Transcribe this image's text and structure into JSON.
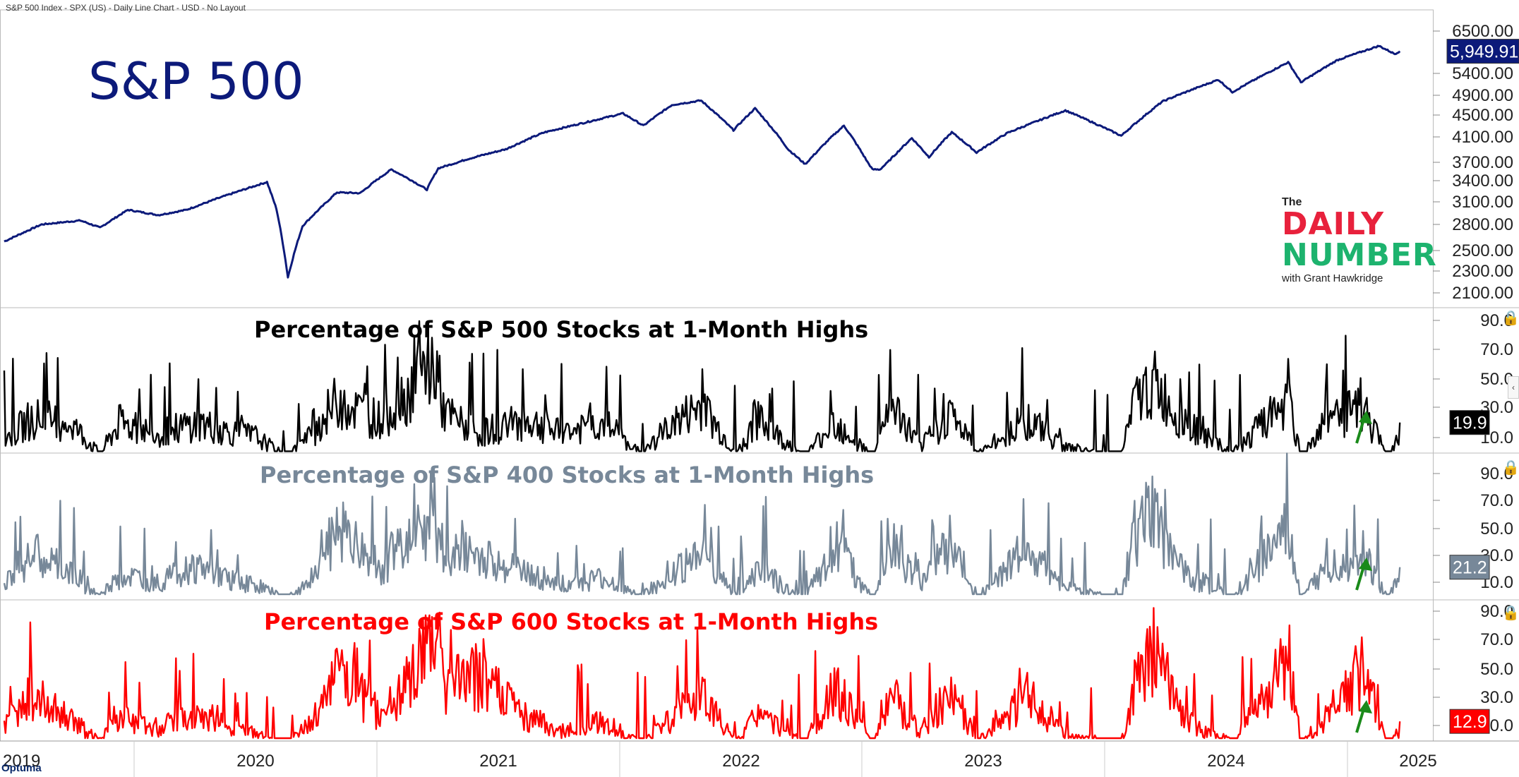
{
  "header": {
    "text": "S&P 500 Index - SPX (US) - Daily Line Chart - USD - No Layout"
  },
  "logo": {
    "the": "The",
    "line1": "DAILY",
    "line2": "NUMBER",
    "line3": "with Grant Hawkridge"
  },
  "footer": {
    "brand": "Optuma"
  },
  "chart_data": [
    {
      "type": "line",
      "title": "S&P 500",
      "x_axis_labels": [
        "2019",
        "2020",
        "2021",
        "2022",
        "2023",
        "2024",
        "2025"
      ],
      "y_ticks": [
        "2100.00",
        "2300.00",
        "2500.00",
        "2800.00",
        "3100.00",
        "3400.00",
        "3700.00",
        "4100.00",
        "4500.00",
        "4900.00",
        "5400.00",
        "6500.00"
      ],
      "y_scale": "log",
      "last_value_label": "5,949.91",
      "color": "#0c1a7a",
      "series": [
        {
          "points": [
            [
              "2019-01-01",
              2600
            ],
            [
              "2019-03-01",
              2800
            ],
            [
              "2019-05-01",
              2850
            ],
            [
              "2019-06-01",
              2760
            ],
            [
              "2019-07-15",
              2990
            ],
            [
              "2019-09-01",
              2920
            ],
            [
              "2019-10-15",
              2990
            ],
            [
              "2019-12-01",
              3140
            ],
            [
              "2020-02-19",
              3380
            ],
            [
              "2020-03-05",
              3000
            ],
            [
              "2020-03-23",
              2240
            ],
            [
              "2020-04-15",
              2780
            ],
            [
              "2020-06-08",
              3230
            ],
            [
              "2020-07-15",
              3220
            ],
            [
              "2020-09-02",
              3580
            ],
            [
              "2020-10-28",
              3270
            ],
            [
              "2020-11-15",
              3600
            ],
            [
              "2020-12-31",
              3750
            ],
            [
              "2021-03-01",
              3900
            ],
            [
              "2021-05-01",
              4180
            ],
            [
              "2021-07-01",
              4350
            ],
            [
              "2021-09-02",
              4530
            ],
            [
              "2021-10-04",
              4300
            ],
            [
              "2021-11-18",
              4700
            ],
            [
              "2022-01-03",
              4790
            ],
            [
              "2022-02-23",
              4220
            ],
            [
              "2022-03-29",
              4630
            ],
            [
              "2022-05-20",
              3900
            ],
            [
              "2022-06-16",
              3670
            ],
            [
              "2022-08-16",
              4300
            ],
            [
              "2022-09-30",
              3580
            ],
            [
              "2022-10-12",
              3580
            ],
            [
              "2022-12-01",
              4080
            ],
            [
              "2022-12-28",
              3780
            ],
            [
              "2023-02-02",
              4180
            ],
            [
              "2023-03-13",
              3850
            ],
            [
              "2023-05-01",
              4170
            ],
            [
              "2023-07-31",
              4590
            ],
            [
              "2023-10-27",
              4120
            ],
            [
              "2023-12-31",
              4770
            ],
            [
              "2024-03-28",
              5250
            ],
            [
              "2024-04-19",
              4970
            ],
            [
              "2024-07-16",
              5670
            ],
            [
              "2024-08-05",
              5190
            ],
            [
              "2024-10-01",
              5720
            ],
            [
              "2024-12-06",
              6090
            ],
            [
              "2024-12-31",
              5880
            ],
            [
              "2025-01-08",
              5950
            ]
          ]
        }
      ]
    },
    {
      "type": "line",
      "title": "Percentage of S&P 500 Stocks at 1-Month Highs",
      "y_ticks": [
        "10.0",
        "30.0",
        "50.0",
        "70.0",
        "90.0"
      ],
      "last_value_label": "19.9",
      "color": "#000000",
      "series": [
        {
          "points": [
            [
              "2019-01-01",
              15
            ],
            [
              "2019-02-15",
              32
            ],
            [
              "2019-04-15",
              28
            ],
            [
              "2019-06-01",
              5
            ],
            [
              "2019-07-01",
              28
            ],
            [
              "2019-09-01",
              20
            ],
            [
              "2019-11-01",
              28
            ],
            [
              "2019-12-15",
              22
            ],
            [
              "2020-02-01",
              18
            ],
            [
              "2020-03-20",
              3
            ],
            [
              "2020-05-01",
              20
            ],
            [
              "2020-06-08",
              45
            ],
            [
              "2020-08-15",
              30
            ],
            [
              "2020-11-09",
              72
            ],
            [
              "2020-11-25",
              35
            ],
            [
              "2021-01-15",
              20
            ],
            [
              "2021-04-01",
              30
            ],
            [
              "2021-06-01",
              20
            ],
            [
              "2021-08-01",
              28
            ],
            [
              "2021-10-01",
              5
            ],
            [
              "2021-11-15",
              26
            ],
            [
              "2022-01-03",
              40
            ],
            [
              "2022-03-01",
              5
            ],
            [
              "2022-04-01",
              30
            ],
            [
              "2022-06-16",
              3
            ],
            [
              "2022-08-01",
              30
            ],
            [
              "2022-09-30",
              3
            ],
            [
              "2022-11-01",
              40
            ],
            [
              "2022-12-15",
              10
            ],
            [
              "2023-02-01",
              35
            ],
            [
              "2023-03-15",
              5
            ],
            [
              "2023-06-01",
              30
            ],
            [
              "2023-08-01",
              10
            ],
            [
              "2023-10-27",
              3
            ],
            [
              "2023-11-15",
              40
            ],
            [
              "2023-12-15",
              58
            ],
            [
              "2024-02-01",
              28
            ],
            [
              "2024-04-19",
              5
            ],
            [
              "2024-07-16",
              45
            ],
            [
              "2024-08-05",
              3
            ],
            [
              "2024-09-15",
              30
            ],
            [
              "2024-11-11",
              38
            ],
            [
              "2024-12-20",
              3
            ],
            [
              "2025-01-08",
              19.9
            ]
          ]
        }
      ]
    },
    {
      "type": "line",
      "title": "Percentage of S&P 400 Stocks at 1-Month Highs",
      "y_ticks": [
        "10.0",
        "30.0",
        "50.0",
        "70.0",
        "90.0"
      ],
      "last_value_label": "21.2",
      "color": "#778899",
      "series": [
        {
          "points": [
            [
              "2019-01-01",
              20
            ],
            [
              "2019-02-15",
              40
            ],
            [
              "2019-04-15",
              25
            ],
            [
              "2019-06-01",
              5
            ],
            [
              "2019-07-01",
              22
            ],
            [
              "2019-09-01",
              18
            ],
            [
              "2019-11-01",
              30
            ],
            [
              "2019-12-15",
              20
            ],
            [
              "2020-02-01",
              15
            ],
            [
              "2020-03-20",
              3
            ],
            [
              "2020-05-01",
              20
            ],
            [
              "2020-06-08",
              60
            ],
            [
              "2020-08-15",
              28
            ],
            [
              "2020-11-09",
              76
            ],
            [
              "2020-11-25",
              40
            ],
            [
              "2021-01-15",
              38
            ],
            [
              "2021-04-01",
              25
            ],
            [
              "2021-06-01",
              15
            ],
            [
              "2021-08-01",
              20
            ],
            [
              "2021-10-01",
              5
            ],
            [
              "2021-11-15",
              25
            ],
            [
              "2022-01-03",
              40
            ],
            [
              "2022-03-01",
              5
            ],
            [
              "2022-04-01",
              28
            ],
            [
              "2022-06-16",
              3
            ],
            [
              "2022-08-01",
              50
            ],
            [
              "2022-09-30",
              3
            ],
            [
              "2022-11-01",
              45
            ],
            [
              "2022-12-15",
              15
            ],
            [
              "2023-02-01",
              50
            ],
            [
              "2023-03-15",
              5
            ],
            [
              "2023-06-01",
              45
            ],
            [
              "2023-08-01",
              12
            ],
            [
              "2023-10-27",
              3
            ],
            [
              "2023-11-15",
              55
            ],
            [
              "2023-12-15",
              72
            ],
            [
              "2024-02-01",
              25
            ],
            [
              "2024-04-19",
              5
            ],
            [
              "2024-07-16",
              60
            ],
            [
              "2024-08-05",
              3
            ],
            [
              "2024-09-15",
              30
            ],
            [
              "2024-11-11",
              40
            ],
            [
              "2024-12-20",
              3
            ],
            [
              "2025-01-08",
              21.2
            ]
          ]
        }
      ]
    },
    {
      "type": "line",
      "title": "Percentage of S&P 600 Stocks at 1-Month Highs",
      "y_ticks": [
        "10.0",
        "30.0",
        "50.0",
        "70.0",
        "90.0"
      ],
      "last_value_label": "12.9",
      "color": "#ff0000",
      "series": [
        {
          "points": [
            [
              "2019-01-01",
              18
            ],
            [
              "2019-02-15",
              42
            ],
            [
              "2019-04-15",
              22
            ],
            [
              "2019-06-01",
              5
            ],
            [
              "2019-07-01",
              25
            ],
            [
              "2019-09-01",
              15
            ],
            [
              "2019-11-01",
              28
            ],
            [
              "2019-12-15",
              20
            ],
            [
              "2020-02-01",
              10
            ],
            [
              "2020-03-20",
              2
            ],
            [
              "2020-05-01",
              20
            ],
            [
              "2020-06-08",
              60
            ],
            [
              "2020-08-15",
              25
            ],
            [
              "2020-11-09",
              78
            ],
            [
              "2020-11-25",
              45
            ],
            [
              "2021-01-15",
              55
            ],
            [
              "2021-04-01",
              25
            ],
            [
              "2021-06-01",
              12
            ],
            [
              "2021-08-01",
              20
            ],
            [
              "2021-10-01",
              3
            ],
            [
              "2021-11-15",
              22
            ],
            [
              "2022-01-03",
              40
            ],
            [
              "2022-03-01",
              5
            ],
            [
              "2022-04-01",
              25
            ],
            [
              "2022-06-16",
              3
            ],
            [
              "2022-08-01",
              48
            ],
            [
              "2022-09-30",
              3
            ],
            [
              "2022-11-01",
              40
            ],
            [
              "2022-12-15",
              12
            ],
            [
              "2023-02-01",
              45
            ],
            [
              "2023-03-15",
              5
            ],
            [
              "2023-06-01",
              40
            ],
            [
              "2023-08-01",
              10
            ],
            [
              "2023-10-27",
              3
            ],
            [
              "2023-11-15",
              45
            ],
            [
              "2023-12-15",
              78
            ],
            [
              "2024-02-01",
              22
            ],
            [
              "2024-04-19",
              4
            ],
            [
              "2024-07-16",
              70
            ],
            [
              "2024-08-05",
              3
            ],
            [
              "2024-09-15",
              25
            ],
            [
              "2024-11-11",
              60
            ],
            [
              "2024-12-20",
              2
            ],
            [
              "2025-01-08",
              12.9
            ]
          ]
        }
      ]
    }
  ]
}
